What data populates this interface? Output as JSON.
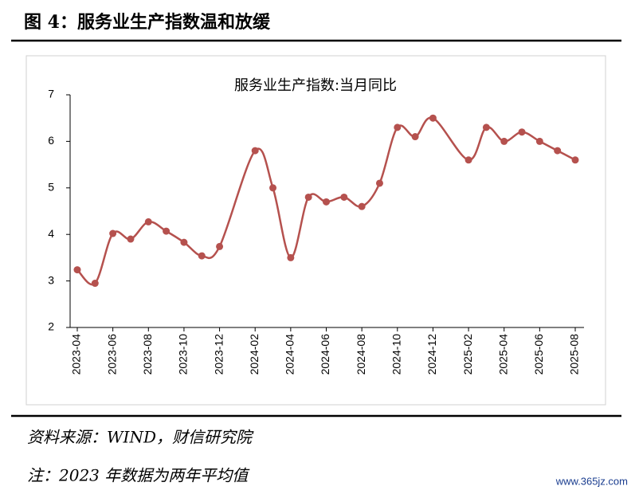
{
  "header": {
    "title": "图 4：服务业生产指数温和放缓"
  },
  "chart_data": {
    "type": "line",
    "title": "服务业生产指数:当月同比",
    "x": [
      "2023-04",
      "2023-05",
      "2023-06",
      "2023-07",
      "2023-08",
      "2023-09",
      "2023-10",
      "2023-11",
      "2023-12",
      "2024-02",
      "2024-03",
      "2024-04",
      "2024-05",
      "2024-06",
      "2024-07",
      "2024-08",
      "2024-09",
      "2024-10",
      "2024-11",
      "2024-12",
      "2025-02",
      "2025-03",
      "2025-04",
      "2025-05",
      "2025-06",
      "2025-07",
      "2025-08"
    ],
    "series": [
      {
        "name": "服务业生产指数:当月同比",
        "color": "#b5514e",
        "values": [
          3.24,
          2.95,
          4.02,
          3.9,
          4.27,
          4.07,
          3.83,
          3.54,
          3.74,
          5.8,
          5.0,
          3.5,
          4.8,
          4.7,
          4.8,
          4.6,
          5.1,
          6.3,
          6.1,
          6.5,
          5.6,
          6.3,
          6.0,
          6.2,
          6.0,
          5.8,
          5.6
        ]
      }
    ],
    "xticks": [
      "2023-04",
      "2023-06",
      "2023-08",
      "2023-10",
      "2023-12",
      "2024-02",
      "2024-04",
      "2024-06",
      "2024-08",
      "2024-10",
      "2024-12",
      "2025-02",
      "2025-04",
      "2025-06",
      "2025-08"
    ],
    "ylim": [
      2,
      7
    ],
    "yticks": [
      2,
      3,
      4,
      5,
      6,
      7
    ]
  },
  "footer": {
    "source": "资料来源：WIND，财信研究院",
    "note": "注：2023 年数据为两年平均值",
    "watermark": "www.365jz.com"
  }
}
